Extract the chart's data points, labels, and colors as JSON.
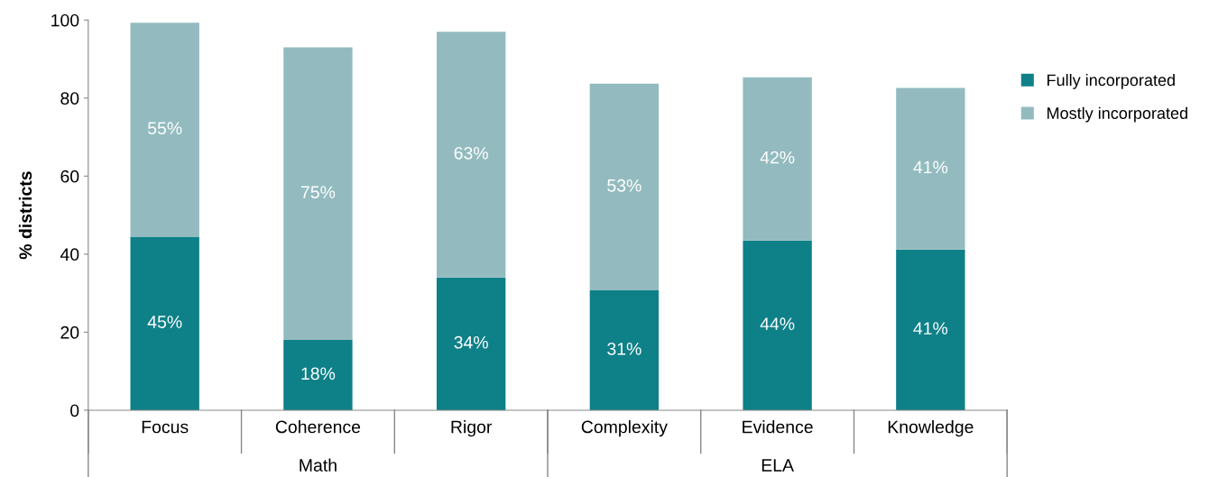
{
  "chart_data": {
    "type": "bar",
    "stacked": true,
    "ylabel": "% districts",
    "categories": [
      "Focus",
      "Coherence",
      "Rigor",
      "Complexity",
      "Evidence",
      "Knowledge"
    ],
    "series": [
      {
        "name": "Fully incorporated",
        "color": "#0e8088",
        "values": [
          44.5,
          18,
          34,
          30.7,
          43.5,
          41.2
        ],
        "value_labels": [
          "45%",
          "18%",
          "34%",
          "31%",
          "44%",
          "41%"
        ]
      },
      {
        "name": "Mostly incorporated",
        "color": "#93bbbf",
        "values": [
          54.8,
          75,
          63,
          53,
          41.8,
          41.4
        ],
        "value_labels": [
          "55%",
          "75%",
          "63%",
          "53%",
          "42%",
          "41%"
        ]
      }
    ],
    "ylim": [
      0,
      100
    ],
    "yticks": [
      0,
      20,
      40,
      60,
      80,
      100
    ],
    "grid": false,
    "legend": "right",
    "annotations": [
      "Math",
      "ELA"
    ]
  }
}
